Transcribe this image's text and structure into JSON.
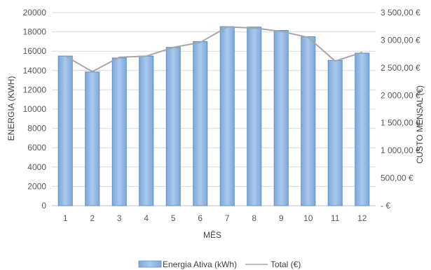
{
  "chart_data": {
    "type": "bar",
    "categories": [
      "1",
      "2",
      "3",
      "4",
      "5",
      "6",
      "7",
      "8",
      "9",
      "10",
      "11",
      "12"
    ],
    "xlabel": "MÊS",
    "ylabel": "ENERGIA (KWH)",
    "y2label": "CUSTO MENSAL (€)",
    "ylim": [
      0,
      20000
    ],
    "y2lim": [
      0,
      3500
    ],
    "yticks": [
      "0",
      "2000",
      "4000",
      "6000",
      "8000",
      "10000",
      "12000",
      "14000",
      "16000",
      "18000",
      "20000"
    ],
    "y2ticks": [
      "-  €",
      "500,00 €",
      "1 000,00 €",
      "1 500,00 €",
      "2 000,00 €",
      "2 500,00 €",
      "3 000,00 €",
      "3 500,00 €"
    ],
    "grid": true,
    "legend_position": "bottom",
    "series": [
      {
        "name": "Energia Ativa (kWh)",
        "type": "bar",
        "axis": "left",
        "color": "#8DB4E2",
        "values": [
          15500,
          13850,
          15300,
          15500,
          16400,
          17000,
          18550,
          18500,
          18150,
          17500,
          15050,
          15800
        ]
      },
      {
        "name": "Total (€)",
        "type": "line",
        "axis": "right",
        "color": "#A6A6A6",
        "values": [
          2710,
          2430,
          2690,
          2710,
          2870,
          2960,
          3240,
          3220,
          3160,
          3050,
          2620,
          2780
        ]
      }
    ]
  }
}
